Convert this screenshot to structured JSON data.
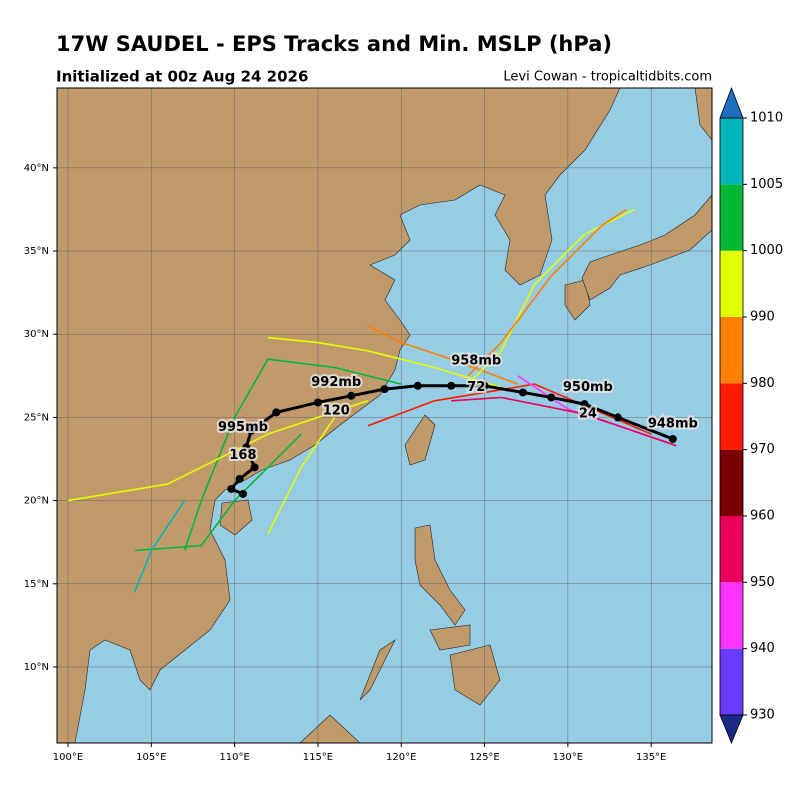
{
  "chart_data": {
    "type": "track_map",
    "title": "17W SAUDEL - EPS Tracks and Min. MSLP (hPa)",
    "subtitle": "Initialized at 00z Aug 24 2026",
    "credit": "Levi Cowan - tropicaltidbits.com",
    "xlim": [
      99.34,
      138.65
    ],
    "ylim": [
      5.43,
      44.8
    ],
    "xticks": [
      {
        "value": 100,
        "label": "100°E"
      },
      {
        "value": 105,
        "label": "105°E"
      },
      {
        "value": 110,
        "label": "110°E"
      },
      {
        "value": 115,
        "label": "115°E"
      },
      {
        "value": 120,
        "label": "120°E"
      },
      {
        "value": 125,
        "label": "125°E"
      },
      {
        "value": 130,
        "label": "130°E"
      },
      {
        "value": 135,
        "label": "135°E"
      }
    ],
    "yticks": [
      {
        "value": 10,
        "label": "10°N"
      },
      {
        "value": 15,
        "label": "15°N"
      },
      {
        "value": 20,
        "label": "20°N"
      },
      {
        "value": 25,
        "label": "25°N"
      },
      {
        "value": 30,
        "label": "30°N"
      },
      {
        "value": 35,
        "label": "35°N"
      },
      {
        "value": 40,
        "label": "40°N"
      }
    ],
    "grid": true,
    "colorbar": {
      "ticks": [
        930,
        940,
        950,
        960,
        970,
        980,
        990,
        1000,
        1005,
        1010
      ],
      "colors": [
        "#6a3cff",
        "#ff33ff",
        "#e8005a",
        "#7a0000",
        "#ff1a00",
        "#ff7f00",
        "#e2ff00",
        "#00b833",
        "#00b4b8"
      ],
      "extend_colors": [
        "#1a2a8a",
        "#1f6fc0"
      ]
    },
    "mean_track": {
      "color": "#000000",
      "lon": [
        136.3,
        133,
        131,
        129,
        127.3,
        125,
        123,
        121,
        119,
        117,
        115,
        112.5,
        111,
        110.7,
        111.2,
        110.3,
        109.8,
        110.5
      ],
      "lat": [
        23.7,
        25,
        25.8,
        26.2,
        26.5,
        26.9,
        26.9,
        26.9,
        26.7,
        26.3,
        25.9,
        25.3,
        24.2,
        23.2,
        22,
        21.3,
        20.7,
        20.4
      ]
    },
    "members": [
      {
        "color": "#e2ff00",
        "lon": [
          127,
          122,
          118,
          115,
          112
        ],
        "lat": [
          26.5,
          28,
          29,
          29.5,
          29.8
        ]
      },
      {
        "color": "#ff7f00",
        "lon": [
          127,
          123,
          120,
          118
        ],
        "lat": [
          27,
          28.5,
          29.5,
          30.5
        ]
      },
      {
        "color": "#00b833",
        "lon": [
          120,
          116,
          112,
          110,
          108,
          107
        ],
        "lat": [
          27,
          28,
          28.5,
          25,
          20,
          17
        ]
      },
      {
        "color": "#e2ff00",
        "lon": [
          124,
          126,
          128,
          131,
          134
        ],
        "lat": [
          27,
          29,
          33,
          36,
          37.5
        ]
      },
      {
        "color": "#ff7f00",
        "lon": [
          124,
          126,
          129,
          132,
          133.5
        ],
        "lat": [
          27.5,
          29.5,
          33.5,
          36.5,
          37.5
        ]
      },
      {
        "color": "#ff1a00",
        "lon": [
          135,
          128,
          122,
          118
        ],
        "lat": [
          24,
          27,
          26,
          24.5
        ]
      },
      {
        "color": "#ff33ff",
        "lon": [
          136,
          130,
          127
        ],
        "lat": [
          23.5,
          25.5,
          27.5
        ]
      },
      {
        "color": "#e8005a",
        "lon": [
          136.5,
          131,
          126,
          123
        ],
        "lat": [
          23.3,
          25.2,
          26.2,
          26
        ]
      },
      {
        "color": "#e2ff00",
        "lon": [
          118,
          112,
          106,
          100
        ],
        "lat": [
          26,
          24,
          21,
          20
        ]
      },
      {
        "color": "#00b833",
        "lon": [
          114,
          110,
          108,
          104
        ],
        "lat": [
          24,
          20,
          17.3,
          17
        ]
      },
      {
        "color": "#00b4b8",
        "lon": [
          107,
          105,
          104
        ],
        "lat": [
          20,
          17,
          14.5
        ]
      },
      {
        "color": "#e2ff00",
        "lon": [
          116,
          114,
          113,
          112
        ],
        "lat": [
          25,
          22,
          20,
          18
        ]
      }
    ],
    "annotations": [
      {
        "text": "948mb",
        "lon": 136.3,
        "lat": 24.6
      },
      {
        "text": "950mb",
        "lon": 131.2,
        "lat": 26.8
      },
      {
        "text": "24",
        "lon": 131.2,
        "lat": 25.2
      },
      {
        "text": "958mb",
        "lon": 124.5,
        "lat": 28.4
      },
      {
        "text": "72",
        "lon": 124.5,
        "lat": 26.8
      },
      {
        "text": "992mb",
        "lon": 116.1,
        "lat": 27.1
      },
      {
        "text": "120",
        "lon": 116.1,
        "lat": 25.4
      },
      {
        "text": "995mb",
        "lon": 110.5,
        "lat": 24.4
      },
      {
        "text": "168",
        "lon": 110.5,
        "lat": 22.7
      }
    ]
  }
}
